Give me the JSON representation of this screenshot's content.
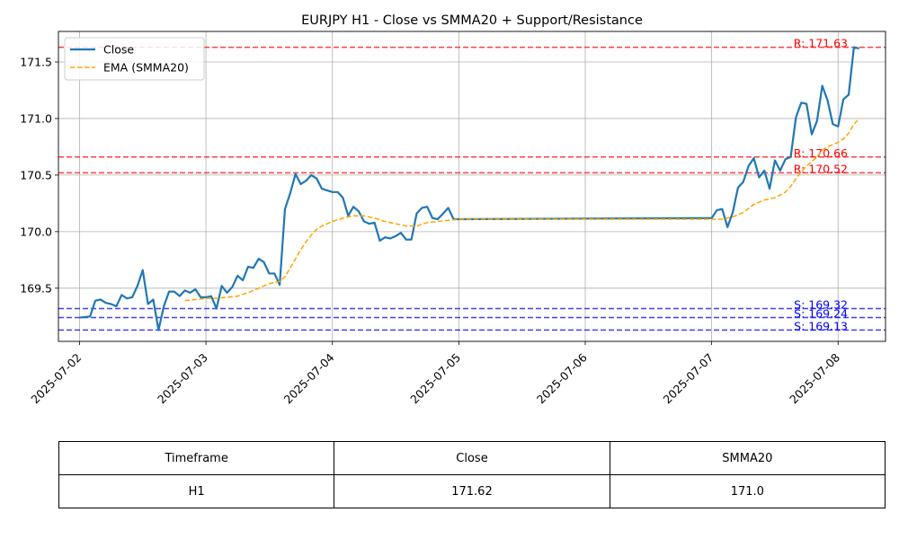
{
  "chart_data": {
    "type": "line",
    "title": "EURJPY H1 - Close vs SMMA20 + Support/Resistance",
    "xlabel": "",
    "ylabel": "",
    "xlim": [
      "2025-07-01T20:00",
      "2025-07-08T09:00"
    ],
    "ylim": [
      169.03,
      171.77
    ],
    "grid": true,
    "legend": "top-left",
    "x_ticks": [
      "2025-07-02",
      "2025-07-03",
      "2025-07-04",
      "2025-07-05",
      "2025-07-06",
      "2025-07-07",
      "2025-07-08"
    ],
    "y_ticks": [
      "169.5",
      "170.0",
      "170.5",
      "171.0",
      "171.5"
    ],
    "series": [
      {
        "name": "Close",
        "color": "#1f77b4",
        "style": "solid",
        "points": [
          [
            "2025-07-02T00:00",
            169.24
          ],
          [
            "2025-07-02T02:00",
            169.25
          ],
          [
            "2025-07-02T03:00",
            169.39
          ],
          [
            "2025-07-02T04:00",
            169.4
          ],
          [
            "2025-07-02T05:00",
            169.37
          ],
          [
            "2025-07-02T06:00",
            169.36
          ],
          [
            "2025-07-02T07:00",
            169.34
          ],
          [
            "2025-07-02T08:00",
            169.44
          ],
          [
            "2025-07-02T09:00",
            169.41
          ],
          [
            "2025-07-02T10:00",
            169.42
          ],
          [
            "2025-07-02T11:00",
            169.52
          ],
          [
            "2025-07-02T12:00",
            169.66
          ],
          [
            "2025-07-02T13:00",
            169.36
          ],
          [
            "2025-07-02T14:00",
            169.4
          ],
          [
            "2025-07-02T15:00",
            169.13
          ],
          [
            "2025-07-02T16:00",
            169.34
          ],
          [
            "2025-07-02T17:00",
            169.47
          ],
          [
            "2025-07-02T18:00",
            169.47
          ],
          [
            "2025-07-02T19:00",
            169.43
          ],
          [
            "2025-07-02T20:00",
            169.48
          ],
          [
            "2025-07-02T21:00",
            169.46
          ],
          [
            "2025-07-02T22:00",
            169.49
          ],
          [
            "2025-07-02T23:00",
            169.42
          ],
          [
            "2025-07-03T00:00",
            169.42
          ],
          [
            "2025-07-03T01:00",
            169.43
          ],
          [
            "2025-07-03T02:00",
            169.32
          ],
          [
            "2025-07-03T03:00",
            169.52
          ],
          [
            "2025-07-03T04:00",
            169.46
          ],
          [
            "2025-07-03T05:00",
            169.51
          ],
          [
            "2025-07-03T06:00",
            169.61
          ],
          [
            "2025-07-03T07:00",
            169.57
          ],
          [
            "2025-07-03T08:00",
            169.69
          ],
          [
            "2025-07-03T09:00",
            169.68
          ],
          [
            "2025-07-03T10:00",
            169.76
          ],
          [
            "2025-07-03T11:00",
            169.73
          ],
          [
            "2025-07-03T12:00",
            169.63
          ],
          [
            "2025-07-03T13:00",
            169.63
          ],
          [
            "2025-07-03T14:00",
            169.53
          ],
          [
            "2025-07-03T15:00",
            170.2
          ],
          [
            "2025-07-03T16:00",
            170.34
          ],
          [
            "2025-07-03T17:00",
            170.51
          ],
          [
            "2025-07-03T18:00",
            170.42
          ],
          [
            "2025-07-03T19:00",
            170.45
          ],
          [
            "2025-07-03T20:00",
            170.5
          ],
          [
            "2025-07-03T21:00",
            170.47
          ],
          [
            "2025-07-03T22:00",
            170.38
          ],
          [
            "2025-07-04T00:00",
            170.35
          ],
          [
            "2025-07-04T01:00",
            170.35
          ],
          [
            "2025-07-04T02:00",
            170.3
          ],
          [
            "2025-07-04T03:00",
            170.14
          ],
          [
            "2025-07-04T04:00",
            170.22
          ],
          [
            "2025-07-04T05:00",
            170.18
          ],
          [
            "2025-07-04T06:00",
            170.09
          ],
          [
            "2025-07-04T07:00",
            170.07
          ],
          [
            "2025-07-04T08:00",
            170.08
          ],
          [
            "2025-07-04T09:00",
            169.92
          ],
          [
            "2025-07-04T10:00",
            169.95
          ],
          [
            "2025-07-04T11:00",
            169.94
          ],
          [
            "2025-07-04T12:00",
            169.96
          ],
          [
            "2025-07-04T13:00",
            169.99
          ],
          [
            "2025-07-04T14:00",
            169.93
          ],
          [
            "2025-07-04T15:00",
            169.93
          ],
          [
            "2025-07-04T16:00",
            170.16
          ],
          [
            "2025-07-04T17:00",
            170.21
          ],
          [
            "2025-07-04T18:00",
            170.22
          ],
          [
            "2025-07-04T19:00",
            170.12
          ],
          [
            "2025-07-04T20:00",
            170.11
          ],
          [
            "2025-07-04T21:00",
            170.16
          ],
          [
            "2025-07-04T22:00",
            170.21
          ],
          [
            "2025-07-04T23:00",
            170.11
          ],
          [
            "2025-07-07T00:00",
            170.12
          ],
          [
            "2025-07-07T01:00",
            170.19
          ],
          [
            "2025-07-07T02:00",
            170.2
          ],
          [
            "2025-07-07T03:00",
            170.04
          ],
          [
            "2025-07-07T04:00",
            170.17
          ],
          [
            "2025-07-07T05:00",
            170.39
          ],
          [
            "2025-07-07T06:00",
            170.44
          ],
          [
            "2025-07-07T07:00",
            170.58
          ],
          [
            "2025-07-07T08:00",
            170.65
          ],
          [
            "2025-07-07T09:00",
            170.48
          ],
          [
            "2025-07-07T10:00",
            170.54
          ],
          [
            "2025-07-07T11:00",
            170.38
          ],
          [
            "2025-07-07T12:00",
            170.63
          ],
          [
            "2025-07-07T13:00",
            170.54
          ],
          [
            "2025-07-07T14:00",
            170.64
          ],
          [
            "2025-07-07T15:00",
            170.66
          ],
          [
            "2025-07-07T16:00",
            171.01
          ],
          [
            "2025-07-07T17:00",
            171.14
          ],
          [
            "2025-07-07T18:00",
            171.13
          ],
          [
            "2025-07-07T19:00",
            170.86
          ],
          [
            "2025-07-07T20:00",
            170.98
          ],
          [
            "2025-07-07T21:00",
            171.29
          ],
          [
            "2025-07-07T22:00",
            171.16
          ],
          [
            "2025-07-07T23:00",
            170.95
          ],
          [
            "2025-07-08T00:00",
            170.93
          ],
          [
            "2025-07-08T01:00",
            171.17
          ],
          [
            "2025-07-08T02:00",
            171.21
          ],
          [
            "2025-07-08T03:00",
            171.63
          ],
          [
            "2025-07-08T04:00",
            171.62
          ]
        ]
      },
      {
        "name": "EMA (SMMA20)",
        "color": "#ffa500",
        "style": "dashed",
        "points": [
          [
            "2025-07-02T20:00",
            169.39
          ],
          [
            "2025-07-02T22:00",
            169.4
          ],
          [
            "2025-07-03T00:00",
            169.41
          ],
          [
            "2025-07-03T02:00",
            169.41
          ],
          [
            "2025-07-03T04:00",
            169.42
          ],
          [
            "2025-07-03T06:00",
            169.43
          ],
          [
            "2025-07-03T08:00",
            169.46
          ],
          [
            "2025-07-03T10:00",
            169.5
          ],
          [
            "2025-07-03T12:00",
            169.54
          ],
          [
            "2025-07-03T14:00",
            169.56
          ],
          [
            "2025-07-03T15:00",
            169.6
          ],
          [
            "2025-07-03T16:00",
            169.68
          ],
          [
            "2025-07-03T17:00",
            169.76
          ],
          [
            "2025-07-03T18:00",
            169.84
          ],
          [
            "2025-07-03T19:00",
            169.91
          ],
          [
            "2025-07-03T20:00",
            169.97
          ],
          [
            "2025-07-03T21:00",
            170.02
          ],
          [
            "2025-07-03T22:00",
            170.05
          ],
          [
            "2025-07-04T00:00",
            170.09
          ],
          [
            "2025-07-04T02:00",
            170.12
          ],
          [
            "2025-07-04T04:00",
            170.14
          ],
          [
            "2025-07-04T06:00",
            170.14
          ],
          [
            "2025-07-04T08:00",
            170.12
          ],
          [
            "2025-07-04T10:00",
            170.09
          ],
          [
            "2025-07-04T12:00",
            170.07
          ],
          [
            "2025-07-04T14:00",
            170.05
          ],
          [
            "2025-07-04T16:00",
            170.05
          ],
          [
            "2025-07-04T18:00",
            170.08
          ],
          [
            "2025-07-04T20:00",
            170.09
          ],
          [
            "2025-07-04T22:00",
            170.1
          ],
          [
            "2025-07-05T00:00",
            170.11
          ],
          [
            "2025-07-06T00:00",
            170.11
          ],
          [
            "2025-07-07T00:00",
            170.11
          ],
          [
            "2025-07-07T02:00",
            170.11
          ],
          [
            "2025-07-07T04:00",
            170.13
          ],
          [
            "2025-07-07T06:00",
            170.17
          ],
          [
            "2025-07-07T08:00",
            170.24
          ],
          [
            "2025-07-07T10:00",
            170.28
          ],
          [
            "2025-07-07T12:00",
            170.3
          ],
          [
            "2025-07-07T14:00",
            170.35
          ],
          [
            "2025-07-07T15:00",
            170.4
          ],
          [
            "2025-07-07T16:00",
            170.47
          ],
          [
            "2025-07-07T17:00",
            170.53
          ],
          [
            "2025-07-07T18:00",
            170.58
          ],
          [
            "2025-07-07T19:00",
            170.62
          ],
          [
            "2025-07-07T20:00",
            170.66
          ],
          [
            "2025-07-07T21:00",
            170.72
          ],
          [
            "2025-07-07T22:00",
            170.75
          ],
          [
            "2025-07-07T23:00",
            170.77
          ],
          [
            "2025-07-08T00:00",
            170.79
          ],
          [
            "2025-07-08T01:00",
            170.82
          ],
          [
            "2025-07-08T02:00",
            170.87
          ],
          [
            "2025-07-08T03:00",
            170.95
          ],
          [
            "2025-07-08T04:00",
            171.0
          ]
        ]
      }
    ],
    "resistance": [
      {
        "value": 171.63,
        "label": "R: 171.63"
      },
      {
        "value": 170.66,
        "label": "R: 170.66"
      },
      {
        "value": 170.52,
        "label": "R: 170.52"
      }
    ],
    "support": [
      {
        "value": 169.32,
        "label": "S: 169.32"
      },
      {
        "value": 169.24,
        "label": "S: 169.24"
      },
      {
        "value": 169.13,
        "label": "S: 169.13"
      }
    ],
    "resistance_color": "#ff0000",
    "support_color": "#0000ff",
    "legend_entries": [
      "Close",
      "EMA (SMMA20)"
    ]
  },
  "table": {
    "headers": [
      "Timeframe",
      "Close",
      "SMMA20"
    ],
    "rows": [
      [
        "H1",
        "171.62",
        "171.0"
      ]
    ]
  }
}
